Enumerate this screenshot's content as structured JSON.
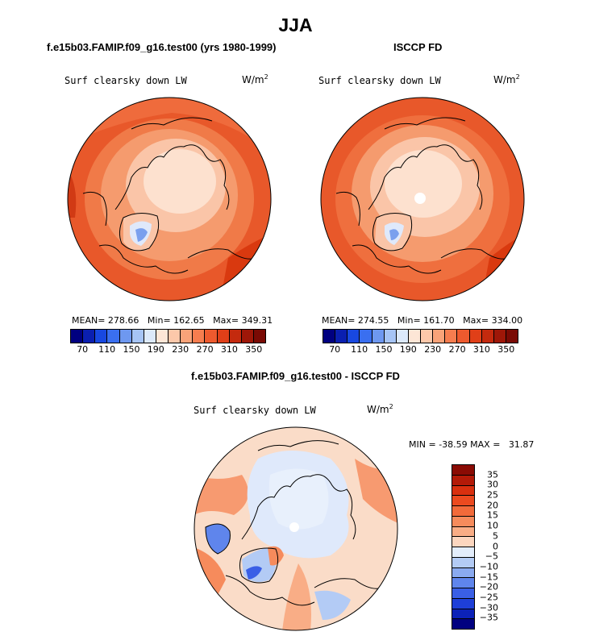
{
  "title": "JJA",
  "panels": [
    {
      "case": "f.e15b03.FAMIP.f09_g16.test00 (yrs 1980-1999)",
      "variable": "Surf clearsky down LW",
      "units_base": "W/m",
      "units_exp": "2",
      "mean_label": "MEAN=",
      "mean": "278.66",
      "min_label": "Min=",
      "min": "162.65",
      "max_label": "Max=",
      "max": "349.31"
    },
    {
      "case": "ISCCP FD",
      "variable": "Surf clearsky down LW",
      "units_base": "W/m",
      "units_exp": "2",
      "mean_label": "MEAN=",
      "mean": "274.55",
      "min_label": "Min=",
      "min": "161.70",
      "max_label": "Max=",
      "max": "334.00"
    }
  ],
  "abs_colorbar": {
    "tick_labels": [
      "70",
      "110",
      "150",
      "190",
      "230",
      "270",
      "310",
      "350"
    ],
    "colors": [
      "#000080",
      "#0a1fb0",
      "#1848e0",
      "#3a6ff0",
      "#6e98f0",
      "#a6c4f5",
      "#dce9fa",
      "#fde6d6",
      "#fcc8aa",
      "#f9a379",
      "#f67d4f",
      "#ee5a2e",
      "#e03f18",
      "#c42a0e",
      "#9e1708",
      "#7a0a04"
    ]
  },
  "diff_panel": {
    "title": "f.e15b03.FAMIP.f09_g16.test00 - ISCCP FD",
    "variable": "Surf clearsky down LW",
    "units_base": "W/m",
    "units_exp": "2",
    "min_label": "MIN =",
    "min": "-38.59",
    "max_label": "MAX =",
    "max": "31.87"
  },
  "diff_colorbar": {
    "tick_labels": [
      "35",
      "30",
      "25",
      "20",
      "15",
      "10",
      "5",
      "0",
      "−5",
      "−10",
      "−15",
      "−20",
      "−25",
      "−30",
      "−35"
    ],
    "colors": [
      "#8a0b04",
      "#b31a08",
      "#d9300f",
      "#ec4a1f",
      "#f26a3a",
      "#f68b5c",
      "#f9ad86",
      "#fcd6bf",
      "#e3edfb",
      "#b3cbf5",
      "#8aaaf0",
      "#5f85ec",
      "#3a5fe6",
      "#1e3fd8",
      "#0c22b8",
      "#000080"
    ]
  },
  "maps": {
    "land_outline_color": "#000000",
    "diff_background": "#fadcc8",
    "abs_background": "#e8582a"
  }
}
